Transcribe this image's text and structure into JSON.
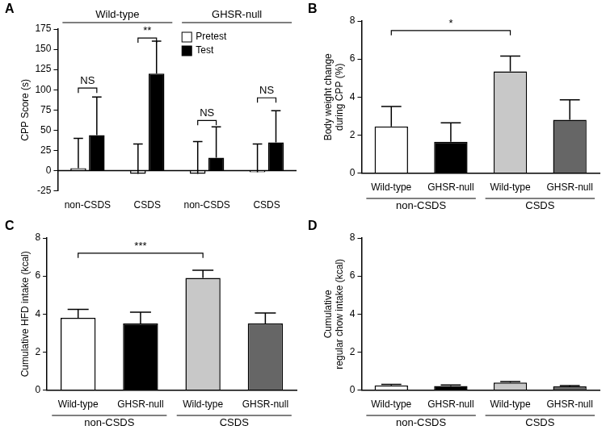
{
  "chart_data": [
    {
      "type": "bar",
      "title": "A",
      "y_label": "CPP Score (s)",
      "categories": [
        "non-CSDS",
        "CSDS",
        "non-CSDS",
        "CSDS"
      ],
      "category_groups": [
        "Wild-type",
        "Wild-type",
        "GHSR-null",
        "GHSR-null"
      ],
      "series": [
        {
          "name": "Pretest",
          "color": "#ffffff",
          "values": [
            3,
            -4,
            -4,
            -2
          ],
          "errors": [
            37,
            37,
            40,
            35
          ]
        },
        {
          "name": "Test",
          "color": "#000000",
          "values": [
            44,
            120,
            16,
            35
          ],
          "errors": [
            47,
            40,
            38,
            39
          ]
        }
      ],
      "ylim": [
        -25,
        175
      ],
      "yticks": [
        -25,
        0,
        25,
        50,
        75,
        100,
        125,
        150,
        175
      ],
      "grid": false,
      "legend": "top",
      "annotations": [
        {
          "text": "NS",
          "x": [
            0,
            0
          ],
          "y": 102
        },
        {
          "text": "**",
          "x": [
            1,
            1
          ],
          "y": 164
        },
        {
          "text": "NS",
          "x": [
            2,
            2
          ],
          "y": 62
        },
        {
          "text": "NS",
          "x": [
            3,
            3
          ],
          "y": 90
        }
      ]
    },
    {
      "type": "bar",
      "title": "B",
      "y_label": [
        "Body weight change",
        "during CPP (%)"
      ],
      "categories": [
        "Wild-type",
        "GHSR-null",
        "Wild-type",
        "GHSR-null"
      ],
      "category_groups": [
        "non-CSDS",
        "non-CSDS",
        "CSDS",
        "CSDS"
      ],
      "values": [
        2.45,
        1.65,
        5.35,
        2.8
      ],
      "errors": [
        1.05,
        1.0,
        0.8,
        1.05
      ],
      "colors": [
        "#ffffff",
        "#000000",
        "#c8c8c8",
        "#666666"
      ],
      "ylim": [
        0,
        8
      ],
      "yticks": [
        0,
        2,
        4,
        6,
        8
      ],
      "grid": false,
      "annotations": [
        {
          "text": "*",
          "x": [
            0,
            2
          ],
          "y": 7.5
        }
      ]
    },
    {
      "type": "bar",
      "title": "C",
      "y_label": "Cumulative HFD intake (kcal)",
      "categories": [
        "Wild-type",
        "GHSR-null",
        "Wild-type",
        "GHSR-null"
      ],
      "category_groups": [
        "non-CSDS",
        "non-CSDS",
        "CSDS",
        "CSDS"
      ],
      "values": [
        3.8,
        3.5,
        5.9,
        3.5
      ],
      "errors": [
        0.45,
        0.6,
        0.4,
        0.55
      ],
      "colors": [
        "#ffffff",
        "#000000",
        "#c8c8c8",
        "#666666"
      ],
      "ylim": [
        0,
        8
      ],
      "yticks": [
        0,
        2,
        4,
        6,
        8
      ],
      "grid": false,
      "annotations": [
        {
          "text": "***",
          "x": [
            0,
            2
          ],
          "y": 7.2
        }
      ]
    },
    {
      "type": "bar",
      "title": "D",
      "y_label": [
        "Cumulative",
        "regular chow intake (kcal)"
      ],
      "categories": [
        "Wild-type",
        "GHSR-null",
        "Wild-type",
        "GHSR-null"
      ],
      "category_groups": [
        "non-CSDS",
        "non-CSDS",
        "CSDS",
        "CSDS"
      ],
      "values": [
        0.25,
        0.22,
        0.4,
        0.2
      ],
      "errors": [
        0.05,
        0.05,
        0.05,
        0.04
      ],
      "colors": [
        "#ffffff",
        "#000000",
        "#c8c8c8",
        "#666666"
      ],
      "ylim": [
        0,
        8
      ],
      "yticks": [
        0,
        2,
        4,
        6,
        8
      ],
      "grid": false
    }
  ]
}
